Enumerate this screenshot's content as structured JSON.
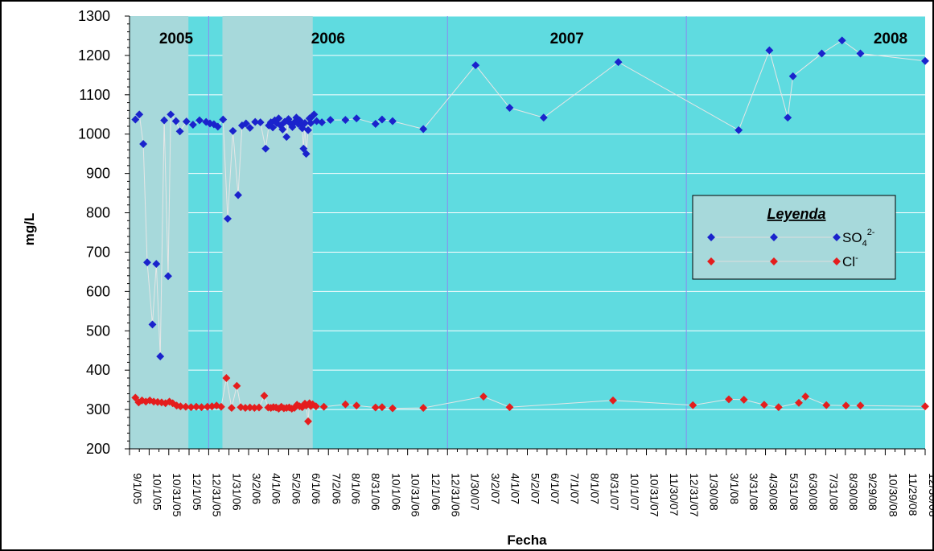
{
  "chart_data": {
    "type": "scatter",
    "ylabel": "mg/L",
    "xlabel": "Fecha",
    "ylim": [
      200,
      1300
    ],
    "yticks": [
      200,
      300,
      400,
      500,
      600,
      700,
      800,
      900,
      1000,
      1100,
      1200,
      1300
    ],
    "xlim": [
      "2005-09-01",
      "2008-12-30"
    ],
    "xtick_labels": [
      "9/1/05",
      "10/1/05",
      "10/31/05",
      "12/1/05",
      "12/31/05",
      "1/31/06",
      "3/2/06",
      "4/1/06",
      "5/2/06",
      "6/1/06",
      "7/2/06",
      "8/1/06",
      "8/31/06",
      "10/1/06",
      "10/31/06",
      "12/1/06",
      "12/31/06",
      "1/30/07",
      "3/2/07",
      "4/1/07",
      "5/2/07",
      "6/1/07",
      "7/1/07",
      "8/1/07",
      "8/31/07",
      "10/1/07",
      "10/31/07",
      "11/30/07",
      "12/31/07",
      "1/30/08",
      "3/1/08",
      "3/31/08",
      "4/30/08",
      "5/31/08",
      "6/30/08",
      "7/31/08",
      "8/30/08",
      "9/29/08",
      "10/30/08",
      "11/29/08",
      "12/30/08"
    ],
    "year_labels": [
      "2005",
      "2006",
      "2007",
      "2008"
    ],
    "year_boundaries": [
      "2005-12-31",
      "2006-12-31",
      "2007-12-31"
    ],
    "shaded_periods": [
      [
        "2005-09-01",
        "2005-11-30"
      ],
      [
        "2006-01-21",
        "2006-06-08"
      ]
    ],
    "plot_background": "#5fdbe0",
    "shaded_color": "#a7d9db",
    "grid": true,
    "legend": {
      "title": "Leyenda",
      "position": "right",
      "entries": [
        {
          "label": "SO",
          "sub": "4",
          "sup": "2-",
          "color": "#1a23cc"
        },
        {
          "label": "Cl",
          "sup": "-",
          "color": "#e41d1d"
        }
      ]
    },
    "series": [
      {
        "name": "SO4 2-",
        "color": "#1a23cc",
        "points": [
          [
            "2005-09-10",
            1037
          ],
          [
            "2005-09-16",
            1050
          ],
          [
            "2005-09-22",
            975
          ],
          [
            "2005-09-28",
            674
          ],
          [
            "2005-10-06",
            516
          ],
          [
            "2005-10-12",
            670
          ],
          [
            "2005-10-18",
            435
          ],
          [
            "2005-10-24",
            1035
          ],
          [
            "2005-10-30",
            639
          ],
          [
            "2005-11-03",
            1050
          ],
          [
            "2005-11-11",
            1033
          ],
          [
            "2005-11-17",
            1007
          ],
          [
            "2005-11-27",
            1032
          ],
          [
            "2005-12-07",
            1024
          ],
          [
            "2005-12-17",
            1035
          ],
          [
            "2005-12-27",
            1031
          ],
          [
            "2006-01-02",
            1027
          ],
          [
            "2006-01-08",
            1025
          ],
          [
            "2006-01-14",
            1019
          ],
          [
            "2006-01-22",
            1037
          ],
          [
            "2006-01-29",
            785
          ],
          [
            "2006-02-06",
            1008
          ],
          [
            "2006-02-14",
            845
          ],
          [
            "2006-02-20",
            1022
          ],
          [
            "2006-02-26",
            1027
          ],
          [
            "2006-03-04",
            1016
          ],
          [
            "2006-03-12",
            1031
          ],
          [
            "2006-03-20",
            1030
          ],
          [
            "2006-03-28",
            963
          ],
          [
            "2006-04-02",
            1022
          ],
          [
            "2006-04-05",
            1030
          ],
          [
            "2006-04-08",
            1017
          ],
          [
            "2006-04-11",
            1035
          ],
          [
            "2006-04-14",
            1028
          ],
          [
            "2006-04-17",
            1040
          ],
          [
            "2006-04-20",
            1022
          ],
          [
            "2006-04-23",
            1012
          ],
          [
            "2006-04-26",
            1031
          ],
          [
            "2006-04-29",
            993
          ],
          [
            "2006-05-02",
            1038
          ],
          [
            "2006-05-05",
            1027
          ],
          [
            "2006-05-08",
            1018
          ],
          [
            "2006-05-11",
            1030
          ],
          [
            "2006-05-14",
            1042
          ],
          [
            "2006-05-17",
            1026
          ],
          [
            "2006-05-19",
            1035
          ],
          [
            "2006-05-21",
            1025
          ],
          [
            "2006-05-23",
            1015
          ],
          [
            "2006-05-25",
            963
          ],
          [
            "2006-05-27",
            1028
          ],
          [
            "2006-05-29",
            950
          ],
          [
            "2006-06-01",
            1010
          ],
          [
            "2006-06-03",
            1040
          ],
          [
            "2006-06-05",
            1028
          ],
          [
            "2006-06-07",
            1045
          ],
          [
            "2006-06-10",
            1050
          ],
          [
            "2006-06-14",
            1033
          ],
          [
            "2006-06-22",
            1030
          ],
          [
            "2006-07-05",
            1036
          ],
          [
            "2006-07-28",
            1036
          ],
          [
            "2006-08-14",
            1040
          ],
          [
            "2006-09-12",
            1026
          ],
          [
            "2006-09-22",
            1037
          ],
          [
            "2006-10-08",
            1033
          ],
          [
            "2006-11-24",
            1013
          ],
          [
            "2007-02-12",
            1175
          ],
          [
            "2007-04-05",
            1067
          ],
          [
            "2007-05-27",
            1042
          ],
          [
            "2007-09-18",
            1183
          ],
          [
            "2008-03-20",
            1010
          ],
          [
            "2008-05-06",
            1213
          ],
          [
            "2008-06-03",
            1042
          ],
          [
            "2008-06-11",
            1147
          ],
          [
            "2008-07-25",
            1205
          ],
          [
            "2008-08-25",
            1238
          ],
          [
            "2008-09-22",
            1205
          ],
          [
            "2008-12-30",
            1186
          ]
        ]
      },
      {
        "name": "Cl -",
        "color": "#e41d1d",
        "points": [
          [
            "2005-09-10",
            330
          ],
          [
            "2005-09-15",
            318
          ],
          [
            "2005-09-20",
            323
          ],
          [
            "2005-09-26",
            320
          ],
          [
            "2005-10-02",
            323
          ],
          [
            "2005-10-08",
            320
          ],
          [
            "2005-10-14",
            319
          ],
          [
            "2005-10-20",
            318
          ],
          [
            "2005-10-26",
            316
          ],
          [
            "2005-11-01",
            320
          ],
          [
            "2005-11-06",
            316
          ],
          [
            "2005-11-12",
            310
          ],
          [
            "2005-11-18",
            308
          ],
          [
            "2005-11-26",
            307
          ],
          [
            "2005-12-04",
            306
          ],
          [
            "2005-12-12",
            307
          ],
          [
            "2005-12-20",
            306
          ],
          [
            "2005-12-29",
            307
          ],
          [
            "2006-01-05",
            308
          ],
          [
            "2006-01-12",
            310
          ],
          [
            "2006-01-19",
            307
          ],
          [
            "2006-01-27",
            380
          ],
          [
            "2006-02-04",
            304
          ],
          [
            "2006-02-12",
            360
          ],
          [
            "2006-02-18",
            306
          ],
          [
            "2006-02-25",
            304
          ],
          [
            "2006-03-04",
            305
          ],
          [
            "2006-03-11",
            304
          ],
          [
            "2006-03-18",
            305
          ],
          [
            "2006-03-26",
            335
          ],
          [
            "2006-04-01",
            305
          ],
          [
            "2006-04-05",
            304
          ],
          [
            "2006-04-09",
            306
          ],
          [
            "2006-04-13",
            305
          ],
          [
            "2006-04-17",
            302
          ],
          [
            "2006-04-21",
            307
          ],
          [
            "2006-04-25",
            303
          ],
          [
            "2006-04-29",
            304
          ],
          [
            "2006-05-03",
            305
          ],
          [
            "2006-05-07",
            302
          ],
          [
            "2006-05-11",
            304
          ],
          [
            "2006-05-15",
            312
          ],
          [
            "2006-05-19",
            308
          ],
          [
            "2006-05-23",
            306
          ],
          [
            "2006-05-27",
            315
          ],
          [
            "2006-05-29",
            310
          ],
          [
            "2006-06-01",
            270
          ],
          [
            "2006-06-03",
            316
          ],
          [
            "2006-06-05",
            309
          ],
          [
            "2006-06-08",
            313
          ],
          [
            "2006-06-13",
            308
          ],
          [
            "2006-06-25",
            307
          ],
          [
            "2006-07-28",
            313
          ],
          [
            "2006-08-14",
            310
          ],
          [
            "2006-09-12",
            305
          ],
          [
            "2006-09-22",
            306
          ],
          [
            "2006-10-08",
            303
          ],
          [
            "2006-11-24",
            304
          ],
          [
            "2007-02-24",
            333
          ],
          [
            "2007-04-05",
            306
          ],
          [
            "2007-09-10",
            323
          ],
          [
            "2008-01-10",
            311
          ],
          [
            "2008-03-05",
            326
          ],
          [
            "2008-03-28",
            325
          ],
          [
            "2008-04-28",
            312
          ],
          [
            "2008-05-20",
            306
          ],
          [
            "2008-06-20",
            317
          ],
          [
            "2008-06-30",
            333
          ],
          [
            "2008-08-01",
            311
          ],
          [
            "2008-08-31",
            310
          ],
          [
            "2008-09-22",
            310
          ],
          [
            "2008-12-30",
            308
          ]
        ]
      }
    ]
  }
}
